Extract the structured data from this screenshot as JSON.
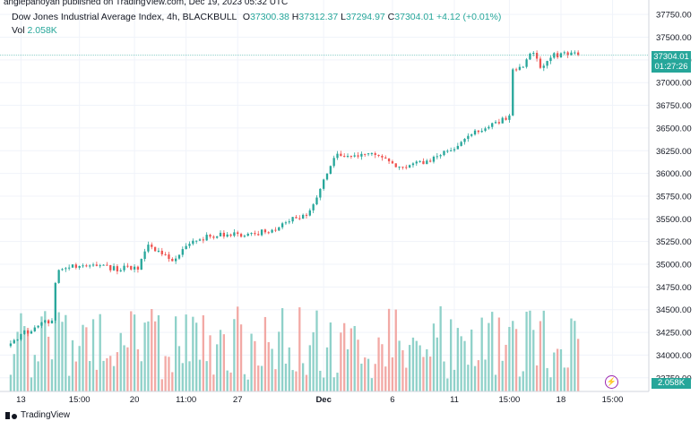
{
  "publisher": "angiepanoyan published on TradingView.com, Dec 19, 2023 05:32 UTC",
  "legend": {
    "title": "Dow Jones Industrial Average Index, 4h, BLACKBULL",
    "o_label": "O",
    "o_value": "37300.38",
    "h_label": "H",
    "h_value": "37312.37",
    "l_label": "L",
    "l_value": "37294.97",
    "c_label": "C",
    "c_value": "37304.01",
    "change": "+4.12 (+0.01%)",
    "vol_label": "Vol",
    "vol_value": "2.058K"
  },
  "price_badge": {
    "price": "37304.01",
    "countdown": "01:27:26"
  },
  "vol_badge": "2.058K",
  "footer_brand": "TradingView",
  "colors": {
    "up": "#26a69a",
    "down": "#ef5350",
    "vol_up": "#8fd1c9",
    "vol_down": "#f2a9a5",
    "grid": "#f0f3fa",
    "accent": "#9c27b0"
  },
  "chart_data": {
    "type": "candlestick",
    "y_ticks": [
      "37750.00",
      "37500.00",
      "37250.00",
      "37000.00",
      "36750.00",
      "36500.00",
      "36250.00",
      "36000.00",
      "35750.00",
      "35500.00",
      "35250.00",
      "35000.00",
      "34750.00",
      "34500.00",
      "34250.00",
      "34000.00",
      "33750.00"
    ],
    "ylim": [
      33600,
      37850
    ],
    "x_ticks": [
      {
        "label": "13",
        "i": 3
      },
      {
        "label": "15:00",
        "i": 20
      },
      {
        "label": "20",
        "i": 36
      },
      {
        "label": "11:00",
        "i": 51
      },
      {
        "label": "27",
        "i": 66
      },
      {
        "label": "Dec",
        "i": 91
      },
      {
        "label": "6",
        "i": 111
      },
      {
        "label": "11",
        "i": 129
      },
      {
        "label": "15:00",
        "i": 145
      },
      {
        "label": "18",
        "i": 160
      },
      {
        "label": "15:00",
        "i": 175
      }
    ],
    "x_count": 185,
    "last_price": 37304.01,
    "volume_max": 2500,
    "anchors": [
      [
        0,
        34100
      ],
      [
        3,
        34220
      ],
      [
        8,
        34330
      ],
      [
        12,
        34380
      ],
      [
        13,
        34800
      ],
      [
        14,
        34930
      ],
      [
        20,
        35000
      ],
      [
        24,
        34980
      ],
      [
        30,
        34950
      ],
      [
        37,
        34960
      ],
      [
        40,
        35200
      ],
      [
        44,
        35100
      ],
      [
        48,
        35050
      ],
      [
        52,
        35250
      ],
      [
        56,
        35290
      ],
      [
        60,
        35330
      ],
      [
        64,
        35320
      ],
      [
        70,
        35330
      ],
      [
        74,
        35360
      ],
      [
        77,
        35400
      ],
      [
        83,
        35520
      ],
      [
        86,
        35550
      ],
      [
        88,
        35660
      ],
      [
        91,
        35930
      ],
      [
        94,
        36200
      ],
      [
        96,
        36210
      ],
      [
        98,
        36170
      ],
      [
        104,
        36220
      ],
      [
        108,
        36180
      ],
      [
        112,
        36080
      ],
      [
        116,
        36080
      ],
      [
        122,
        36140
      ],
      [
        126,
        36220
      ],
      [
        128,
        36230
      ],
      [
        132,
        36370
      ],
      [
        136,
        36470
      ],
      [
        139,
        36520
      ],
      [
        143,
        36600
      ],
      [
        145,
        36610
      ],
      [
        146,
        37130
      ],
      [
        149,
        37200
      ],
      [
        152,
        37350
      ],
      [
        154,
        37180
      ],
      [
        156,
        37230
      ],
      [
        158,
        37300
      ],
      [
        162,
        37330
      ],
      [
        165,
        37304
      ]
    ],
    "candle_seed": 4217
  }
}
